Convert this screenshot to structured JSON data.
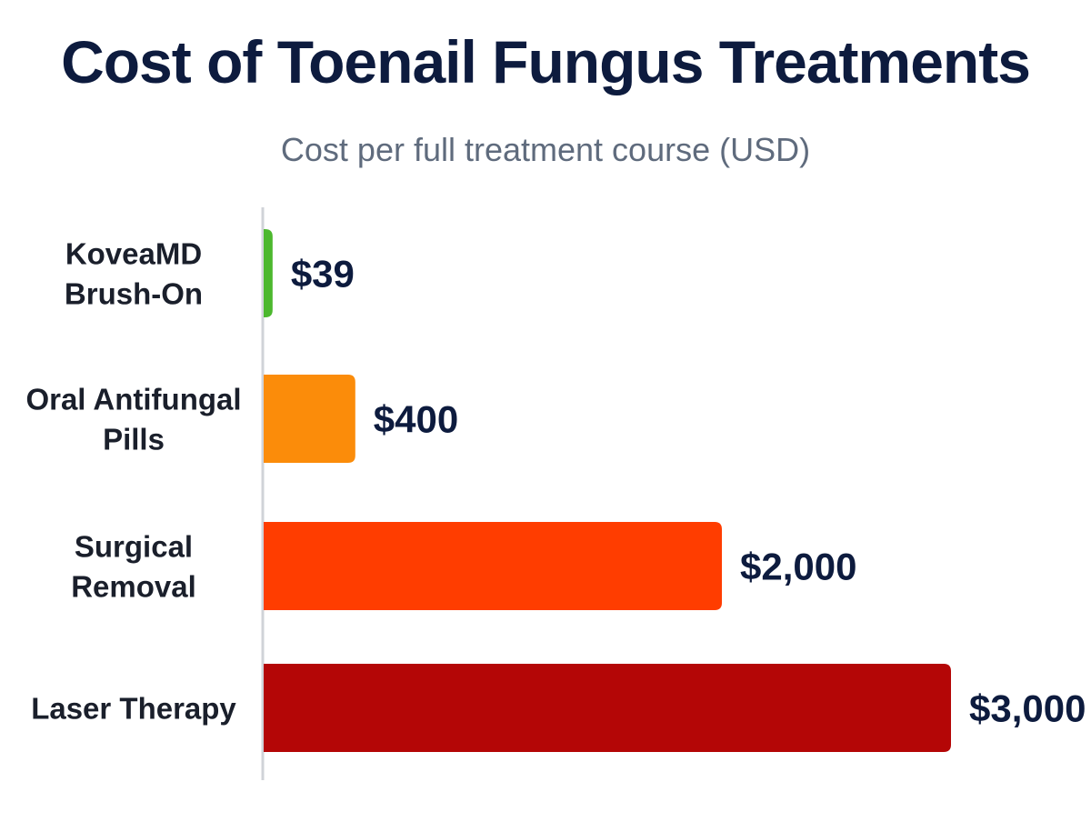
{
  "chart_data": {
    "type": "bar",
    "orientation": "horizontal",
    "title": "Cost of Toenail Fungus Treatments",
    "subtitle": "Cost per full treatment course (USD)",
    "categories": [
      [
        "KoveaMD",
        "Brush-On"
      ],
      [
        "Oral Antifungal",
        "Pills"
      ],
      [
        "Surgical",
        "Removal"
      ],
      [
        "Laser Therapy"
      ]
    ],
    "values": [
      39,
      400,
      2000,
      3000
    ],
    "value_labels": [
      "$39",
      "$400",
      "$2,000",
      "$3,000"
    ],
    "colors": [
      "#4cb82e",
      "#fb8c0a",
      "#ff3d00",
      "#b40606"
    ],
    "xlim": [
      0,
      3000
    ],
    "grid": false,
    "legend": "none",
    "axis_color": "#d0d3d8"
  }
}
